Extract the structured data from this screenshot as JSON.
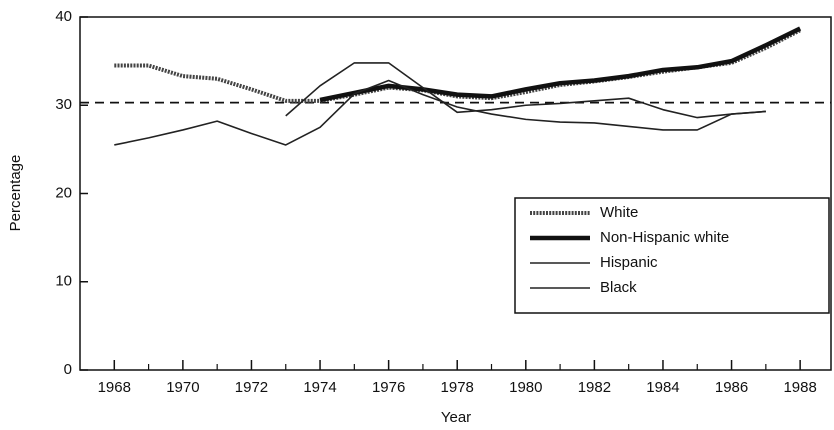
{
  "chart_data": {
    "type": "line",
    "x_label": "Year",
    "y_label": "Percentage",
    "x": [
      1968,
      1969,
      1970,
      1971,
      1972,
      1973,
      1974,
      1975,
      1976,
      1977,
      1978,
      1979,
      1980,
      1981,
      1982,
      1983,
      1984,
      1985,
      1986,
      1987,
      1988
    ],
    "series": [
      {
        "name": "White",
        "color": "#444",
        "style": "hatched",
        "values": [
          34.5,
          34.5,
          33.3,
          33,
          31.8,
          30.5,
          30.5,
          31.2,
          32,
          31.7,
          31,
          30.8,
          31.5,
          32.3,
          32.7,
          33.2,
          33.8,
          34.3,
          34.8,
          36.5,
          38.5
        ]
      },
      {
        "name": "Non-Hispanic white",
        "color": "#111",
        "style": "thick",
        "values": [
          null,
          null,
          null,
          null,
          null,
          null,
          30.6,
          31.4,
          32.2,
          31.8,
          31.2,
          31,
          31.8,
          32.5,
          32.8,
          33.3,
          34,
          34.3,
          35,
          36.8,
          38.7
        ]
      },
      {
        "name": "Hispanic",
        "color": "#222",
        "style": "thin",
        "values": [
          null,
          null,
          null,
          null,
          null,
          28.8,
          32.2,
          34.8,
          34.8,
          32,
          29.2,
          29.5,
          30,
          30.2,
          30.5,
          30.8,
          29.5,
          28.6,
          29,
          29.3,
          null
        ]
      },
      {
        "name": "Black",
        "color": "#222",
        "style": "thin",
        "values": [
          25.5,
          26.3,
          27.2,
          28.2,
          26.8,
          25.5,
          27.5,
          31.3,
          32.8,
          31.2,
          29.8,
          29,
          28.4,
          28.1,
          28,
          27.6,
          27.2,
          27.2,
          29,
          29.3,
          null
        ]
      }
    ],
    "reference_line": 30.3,
    "xlim": [
      1967,
      1988.9
    ],
    "xticks": [
      1968,
      1970,
      1972,
      1974,
      1976,
      1978,
      1980,
      1982,
      1984,
      1986,
      1988
    ],
    "xminor_ticks": [
      1969,
      1971,
      1973,
      1975,
      1977,
      1979,
      1981,
      1983,
      1985,
      1987
    ],
    "ylim": [
      0,
      40
    ],
    "yticks": [
      0,
      10,
      20,
      30,
      40
    ],
    "legend": "lower right"
  }
}
